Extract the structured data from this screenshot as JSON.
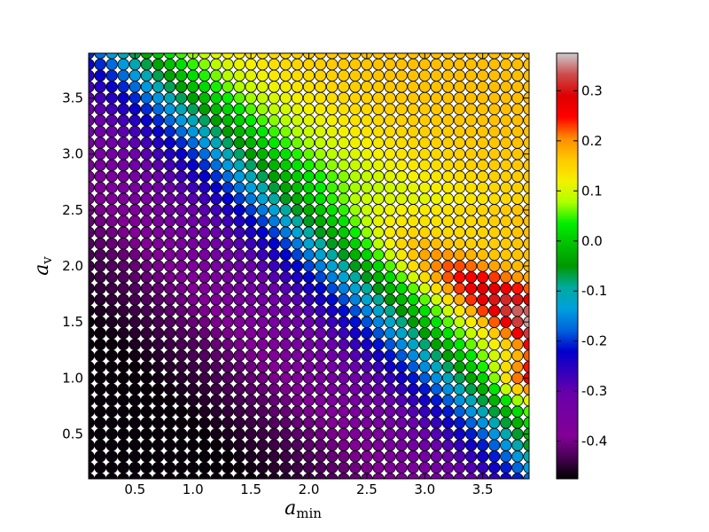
{
  "chart_data": {
    "type": "scatter",
    "title": "",
    "xlabel": "a",
    "xlabel_sub": "min",
    "ylabel": "a",
    "ylabel_sub": "v",
    "xlim": [
      0.1,
      3.9
    ],
    "ylim": [
      0.1,
      3.9
    ],
    "xticks": [
      "0.5",
      "1.0",
      "1.5",
      "2.0",
      "2.5",
      "3.0",
      "3.5"
    ],
    "xtick_values": [
      0.5,
      1.0,
      1.5,
      2.0,
      2.5,
      3.0,
      3.5
    ],
    "yticks": [
      "0.5",
      "1.0",
      "1.5",
      "2.0",
      "2.5",
      "3.0",
      "3.5"
    ],
    "ytick_values": [
      0.5,
      1.0,
      1.5,
      2.0,
      2.5,
      3.0,
      3.5
    ],
    "grid": false,
    "marker": "circle",
    "grid_spacing": 0.1,
    "x_range": [
      0.1,
      3.9
    ],
    "y_range": [
      0.1,
      3.9
    ],
    "point_count_per_axis": 39,
    "value_model": "estimated colour value per (a_min, a_v) grid point; minimum ~-0.47 at low a_min/a_v, maximum ~0.37 near a_min=3.9, a_v=1.0",
    "colormap": "nipy_spectral",
    "colorbar": {
      "min": -0.475,
      "max": 0.375,
      "ticks": [
        "-0.4",
        "-0.3",
        "-0.2",
        "-0.1",
        "0.0",
        "0.1",
        "0.2",
        "0.3"
      ],
      "tick_values": [
        -0.4,
        -0.3,
        -0.2,
        -0.1,
        0.0,
        0.1,
        0.2,
        0.3
      ]
    }
  }
}
